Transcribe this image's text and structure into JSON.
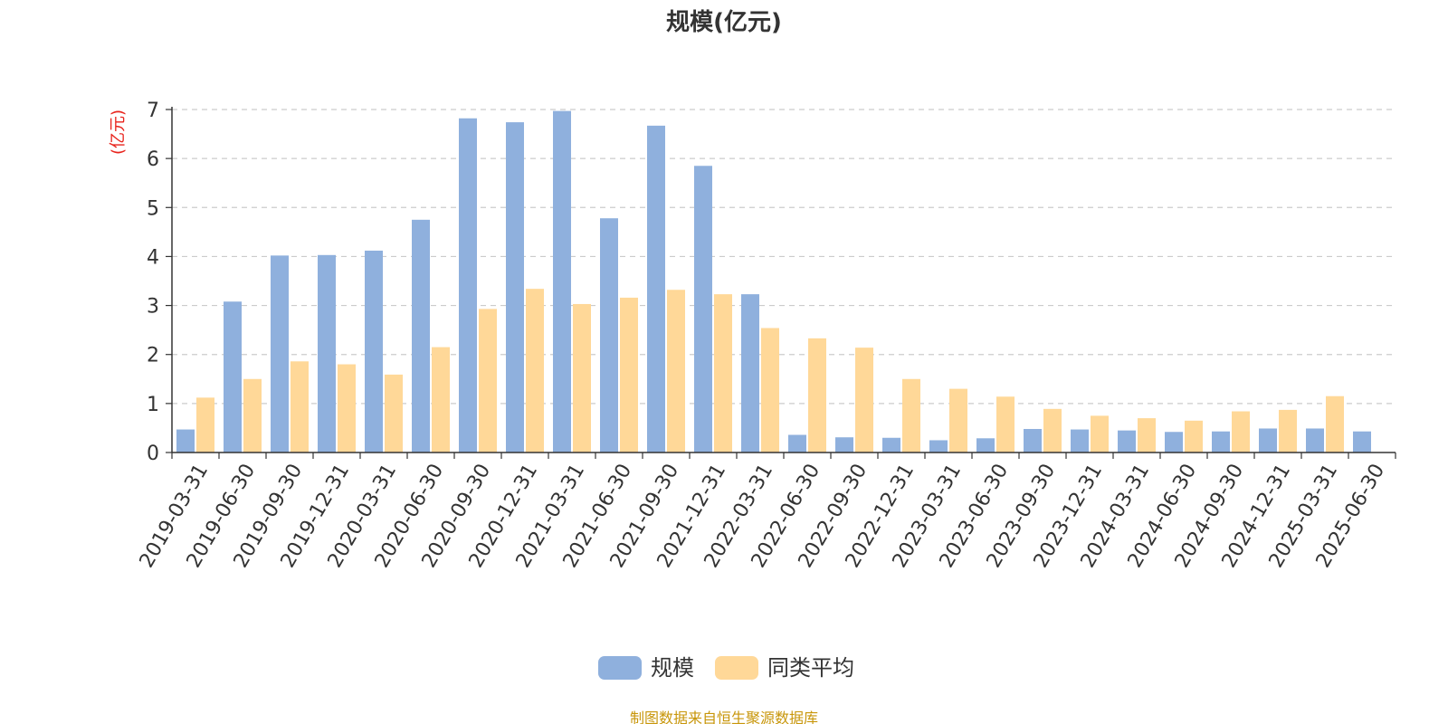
{
  "title": "规模(亿元)",
  "source_note": "制图数据来自恒生聚源数据库",
  "colors": {
    "scale": "#8fb0dd",
    "avg": "#ffd898",
    "unit_label": "#e8231c",
    "axis": "#333333",
    "grid": "#cccccc"
  },
  "chart_data": {
    "type": "bar",
    "title": "规模(亿元)",
    "ylabel": "(亿元)",
    "xlabel": "",
    "ylim": [
      0,
      7
    ],
    "yticks": [
      0,
      1,
      2,
      3,
      4,
      5,
      6,
      7
    ],
    "grid": "horizontal-dashed",
    "legend_position": "bottom-center",
    "categories": [
      "2019-03-31",
      "2019-06-30",
      "2019-09-30",
      "2019-12-31",
      "2020-03-31",
      "2020-06-30",
      "2020-09-30",
      "2020-12-31",
      "2021-03-31",
      "2021-06-30",
      "2021-09-30",
      "2021-12-31",
      "2022-03-31",
      "2022-06-30",
      "2022-09-30",
      "2022-12-31",
      "2023-03-31",
      "2023-06-30",
      "2023-09-30",
      "2023-12-31",
      "2024-03-31",
      "2024-06-30",
      "2024-09-30",
      "2024-12-31",
      "2025-03-31",
      "2025-06-30"
    ],
    "series": [
      {
        "name": "规模",
        "color": "#8fb0dd",
        "values": [
          0.47,
          3.08,
          4.02,
          4.03,
          4.12,
          4.75,
          6.82,
          6.74,
          6.97,
          4.78,
          6.67,
          5.85,
          3.23,
          0.36,
          0.31,
          0.3,
          0.25,
          0.29,
          0.48,
          0.47,
          0.45,
          0.42,
          0.43,
          0.49,
          0.49,
          0.43
        ]
      },
      {
        "name": "同类平均",
        "color": "#ffd898",
        "values": [
          1.12,
          1.5,
          1.86,
          1.8,
          1.59,
          2.15,
          2.93,
          3.34,
          3.03,
          3.16,
          3.32,
          3.23,
          2.54,
          2.33,
          2.14,
          1.5,
          1.3,
          1.14,
          0.89,
          0.75,
          0.7,
          0.65,
          0.84,
          0.87,
          1.15,
          null
        ]
      }
    ]
  }
}
